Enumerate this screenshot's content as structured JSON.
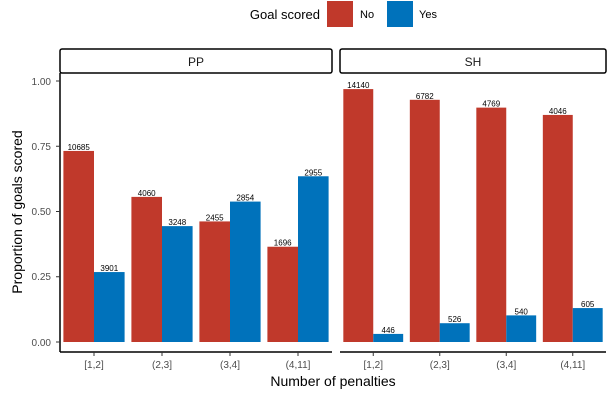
{
  "chart_data": {
    "type": "bar",
    "xlabel": "Number of penalties",
    "ylabel": "Proportion of goals scored",
    "ylim": [
      0,
      1.05
    ],
    "yticks": [
      "0.00",
      "0.25",
      "0.50",
      "0.75",
      "1.00"
    ],
    "ytick_values": [
      0,
      0.25,
      0.5,
      0.75,
      1.0
    ],
    "categories": [
      "[1,2]",
      "(2,3]",
      "(3,4]",
      "(4,11]"
    ],
    "legend": {
      "title": "Goal scored",
      "position": "top",
      "entries": [
        {
          "label": "No",
          "color": "#C0392B"
        },
        {
          "label": "Yes",
          "color": "#0072BB"
        }
      ]
    },
    "panels": [
      {
        "label": "PP",
        "series": [
          {
            "name": "No",
            "values": [
              0.732,
              0.556,
              0.462,
              0.365
            ],
            "labels": [
              "10685",
              "4060",
              "2455",
              "1696"
            ]
          },
          {
            "name": "Yes",
            "values": [
              0.268,
              0.444,
              0.538,
              0.635
            ],
            "labels": [
              "3901",
              "3248",
              "2854",
              "2955"
            ]
          }
        ]
      },
      {
        "label": "SH",
        "series": [
          {
            "name": "No",
            "values": [
              0.969,
              0.928,
              0.898,
              0.87
            ],
            "labels": [
              "14140",
              "6782",
              "4769",
              "4046"
            ]
          },
          {
            "name": "Yes",
            "values": [
              0.031,
              0.072,
              0.102,
              0.13
            ],
            "labels": [
              "446",
              "526",
              "540",
              "605"
            ]
          }
        ]
      }
    ]
  }
}
